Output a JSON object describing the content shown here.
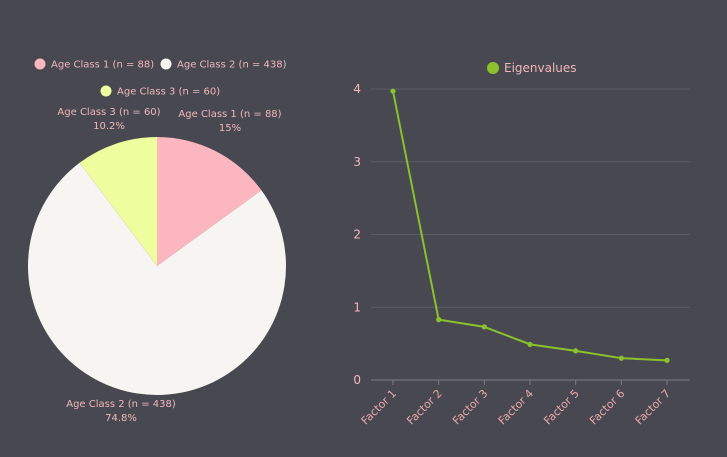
{
  "chart_data": [
    {
      "type": "pie",
      "legend_position": "top",
      "series": [
        {
          "name": "Age Class 1 (n = 88)",
          "value": 88,
          "percent_label": "15%",
          "color": "#fbb6c0"
        },
        {
          "name": "Age Class 2 (n = 438)",
          "value": 438,
          "percent_label": "74.8%",
          "color": "#f7f5f2"
        },
        {
          "name": "Age Class 3 (n = 60)",
          "value": 60,
          "percent_label": "10.2%",
          "color": "#eefd9e"
        }
      ]
    },
    {
      "type": "line",
      "legend_position": "top",
      "legend": "Eigenvalues",
      "color": "#8ac12d",
      "categories": [
        "Factor 1",
        "Factor 2",
        "Factor 3",
        "Factor 4",
        "Factor 5",
        "Factor 6",
        "Factor 7"
      ],
      "values": [
        3.97,
        0.83,
        0.73,
        0.49,
        0.4,
        0.3,
        0.27
      ],
      "ylim": [
        0,
        4
      ],
      "yticks": [
        "0",
        "1",
        "2",
        "3",
        "4"
      ],
      "grid": true
    }
  ]
}
